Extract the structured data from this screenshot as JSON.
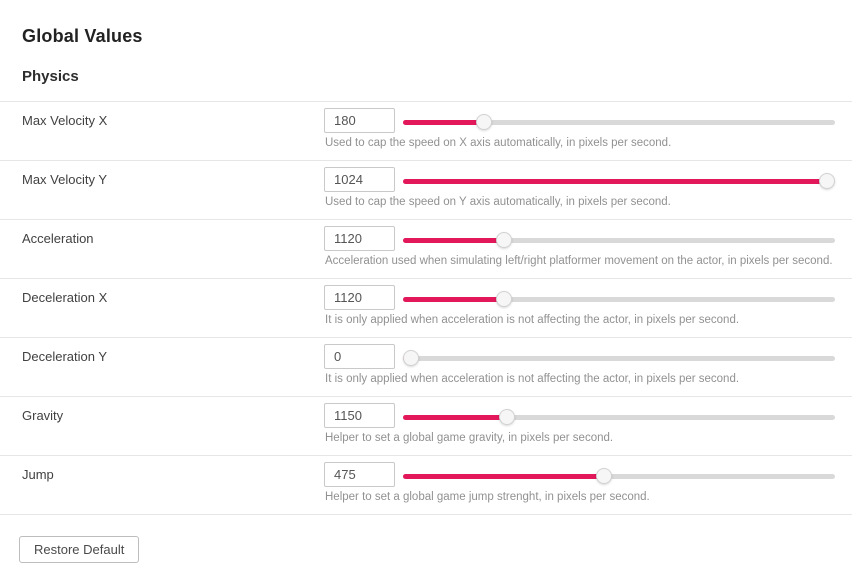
{
  "page": {
    "title": "Global Values",
    "section": "Physics"
  },
  "colors": {
    "accent": "#e2185b",
    "track": "#d9d9d9"
  },
  "rows": [
    {
      "label": "Max Velocity X",
      "value": "180",
      "slider_percent": 17.6,
      "help": "Used to cap the speed on X axis automatically, in pixels per second."
    },
    {
      "label": "Max Velocity Y",
      "value": "1024",
      "slider_percent": 100,
      "help": "Used to cap the speed on Y axis automatically, in pixels per second."
    },
    {
      "label": "Acceleration",
      "value": "1120",
      "slider_percent": 22.4,
      "help": "Acceleration used when simulating left/right platformer movement on the actor, in pixels per second."
    },
    {
      "label": "Deceleration X",
      "value": "1120",
      "slider_percent": 22.4,
      "help": "It is only applied when acceleration is not affecting the actor, in pixels per second."
    },
    {
      "label": "Deceleration Y",
      "value": "0",
      "slider_percent": 0,
      "help": "It is only applied when acceleration is not affecting the actor, in pixels per second."
    },
    {
      "label": "Gravity",
      "value": "1150",
      "slider_percent": 23,
      "help": "Helper to set a global game gravity, in pixels per second."
    },
    {
      "label": "Jump",
      "value": "475",
      "slider_percent": 46.4,
      "help": "Helper to set a global game jump strenght, in pixels per second."
    }
  ],
  "footer": {
    "restore_button": "Restore Default"
  }
}
